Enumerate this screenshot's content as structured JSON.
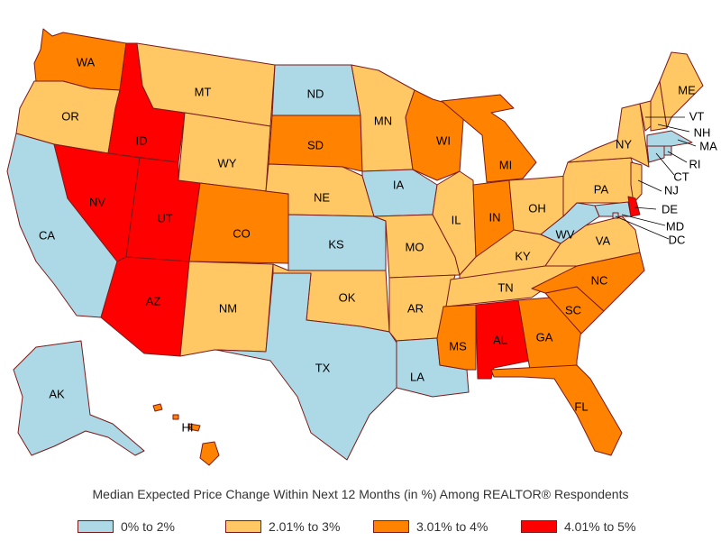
{
  "title": "Median Expected Price Change Within Next 12 Months (in %) Among REALTOR® Respondents",
  "legend": [
    {
      "label": "0% to 2%",
      "color": "#add8e6"
    },
    {
      "label": "2.01% to 3%",
      "color": "#ffc864"
    },
    {
      "label": "3.01% to 4%",
      "color": "#ff8200"
    },
    {
      "label": "4.01% to 5%",
      "color": "#ff0000"
    }
  ],
  "states": [
    {
      "abbr": "WA",
      "category": 2
    },
    {
      "abbr": "OR",
      "category": 1
    },
    {
      "abbr": "CA",
      "category": 0
    },
    {
      "abbr": "ID",
      "category": 3
    },
    {
      "abbr": "NV",
      "category": 3
    },
    {
      "abbr": "UT",
      "category": 3
    },
    {
      "abbr": "AZ",
      "category": 3
    },
    {
      "abbr": "MT",
      "category": 1
    },
    {
      "abbr": "WY",
      "category": 1
    },
    {
      "abbr": "CO",
      "category": 2
    },
    {
      "abbr": "NM",
      "category": 1
    },
    {
      "abbr": "ND",
      "category": 0
    },
    {
      "abbr": "SD",
      "category": 2
    },
    {
      "abbr": "NE",
      "category": 1
    },
    {
      "abbr": "KS",
      "category": 0
    },
    {
      "abbr": "OK",
      "category": 1
    },
    {
      "abbr": "TX",
      "category": 0
    },
    {
      "abbr": "MN",
      "category": 1
    },
    {
      "abbr": "IA",
      "category": 0
    },
    {
      "abbr": "MO",
      "category": 1
    },
    {
      "abbr": "AR",
      "category": 1
    },
    {
      "abbr": "LA",
      "category": 0
    },
    {
      "abbr": "WI",
      "category": 2
    },
    {
      "abbr": "IL",
      "category": 1
    },
    {
      "abbr": "MI",
      "category": 2
    },
    {
      "abbr": "IN",
      "category": 2
    },
    {
      "abbr": "OH",
      "category": 1
    },
    {
      "abbr": "KY",
      "category": 1
    },
    {
      "abbr": "TN",
      "category": 1
    },
    {
      "abbr": "MS",
      "category": 2
    },
    {
      "abbr": "AL",
      "category": 3
    },
    {
      "abbr": "GA",
      "category": 2
    },
    {
      "abbr": "FL",
      "category": 2
    },
    {
      "abbr": "SC",
      "category": 2
    },
    {
      "abbr": "NC",
      "category": 2
    },
    {
      "abbr": "VA",
      "category": 1
    },
    {
      "abbr": "WV",
      "category": 0
    },
    {
      "abbr": "PA",
      "category": 1
    },
    {
      "abbr": "NY",
      "category": 1
    },
    {
      "abbr": "VT",
      "category": 1
    },
    {
      "abbr": "NH",
      "category": 1
    },
    {
      "abbr": "ME",
      "category": 1
    },
    {
      "abbr": "MA",
      "category": 0
    },
    {
      "abbr": "RI",
      "category": 0
    },
    {
      "abbr": "CT",
      "category": 0
    },
    {
      "abbr": "NJ",
      "category": 1
    },
    {
      "abbr": "DE",
      "category": 3
    },
    {
      "abbr": "MD",
      "category": 0
    },
    {
      "abbr": "DC",
      "category": 0
    },
    {
      "abbr": "AK",
      "category": 0
    },
    {
      "abbr": "HI",
      "category": 2
    }
  ]
}
